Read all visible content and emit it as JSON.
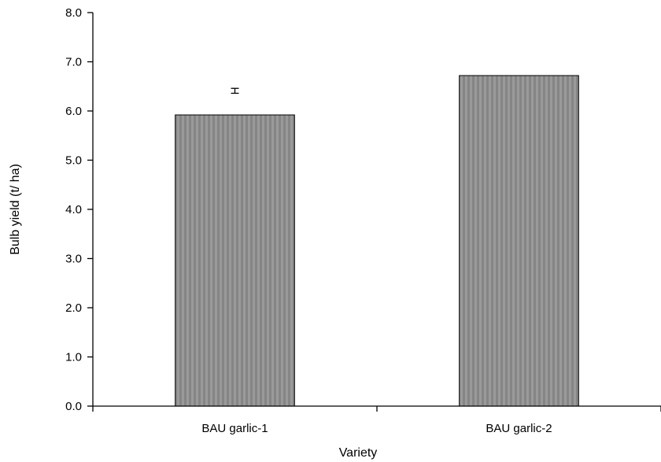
{
  "chart_data": {
    "type": "bar",
    "title": "",
    "xlabel": "Variety",
    "ylabel": "Bulb yield (t/ ha)",
    "categories": [
      "BAU garlic-1",
      "BAU garlic-2"
    ],
    "values": [
      5.92,
      6.72
    ],
    "ylim": [
      0,
      8
    ],
    "yticks": [
      "0.0",
      "1.0",
      "2.0",
      "3.0",
      "4.0",
      "5.0",
      "6.0",
      "7.0",
      "8.0"
    ],
    "error_bar": {
      "center": 6.41,
      "half_width": 0.05
    },
    "grid": false,
    "legend": "none",
    "bar_color": "#858585",
    "bar_stripe_color": "#9a9a9a",
    "bar_edge_color": "#000000"
  }
}
